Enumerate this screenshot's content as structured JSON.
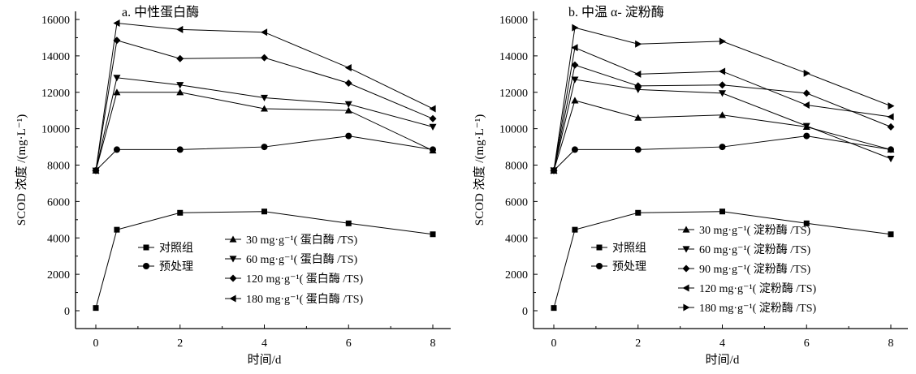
{
  "chart_data": [
    {
      "type": "line",
      "title": "a. 中性蛋白酶",
      "xlabel": "时间/d",
      "ylabel": "SCOD 浓度 /(mg·L⁻¹)",
      "xlim": [
        0,
        8
      ],
      "ylim": [
        0,
        16000
      ],
      "xticks": [
        0,
        2,
        4,
        6,
        8
      ],
      "yticks": [
        0,
        2000,
        4000,
        6000,
        8000,
        10000,
        12000,
        14000,
        16000
      ],
      "grid": false,
      "x": [
        0,
        0.5,
        2,
        4,
        6,
        8
      ],
      "series": [
        {
          "name": "对照组",
          "marker": "square",
          "values": [
            150,
            4450,
            5380,
            5450,
            4800,
            4200
          ]
        },
        {
          "name": "预处理",
          "marker": "circle",
          "values": [
            7700,
            8850,
            8850,
            9000,
            9600,
            8850
          ]
        },
        {
          "name": "30 mg·g⁻¹( 蛋白酶 /TS)",
          "marker": "triangle-up",
          "values": [
            7700,
            12000,
            12000,
            11100,
            11000,
            8800
          ]
        },
        {
          "name": "60 mg·g⁻¹( 蛋白酶 /TS)",
          "marker": "triangle-down",
          "values": [
            7700,
            12800,
            12400,
            11700,
            11350,
            10100
          ]
        },
        {
          "name": "120 mg·g⁻¹( 蛋白酶 /TS)",
          "marker": "diamond",
          "values": [
            7700,
            14850,
            13850,
            13900,
            12500,
            10550
          ]
        },
        {
          "name": "180 mg·g⁻¹( 蛋白酶 /TS)",
          "marker": "triangle-left",
          "values": [
            7700,
            15800,
            15450,
            15300,
            13350,
            11100
          ]
        }
      ]
    },
    {
      "type": "line",
      "title": "b. 中温 α- 淀粉酶",
      "xlabel": "时间/d",
      "ylabel": "SCOD 浓度 /(mg·L⁻¹)",
      "xlim": [
        0,
        8
      ],
      "ylim": [
        0,
        16000
      ],
      "xticks": [
        0,
        2,
        4,
        6,
        8
      ],
      "yticks": [
        0,
        2000,
        4000,
        6000,
        8000,
        10000,
        12000,
        14000,
        16000
      ],
      "grid": false,
      "x": [
        0,
        0.5,
        2,
        4,
        6,
        8
      ],
      "series": [
        {
          "name": "对照组",
          "marker": "square",
          "values": [
            150,
            4450,
            5380,
            5450,
            4800,
            4200
          ]
        },
        {
          "name": "预处理",
          "marker": "circle",
          "values": [
            7700,
            8850,
            8850,
            9000,
            9600,
            8850
          ]
        },
        {
          "name": "30 mg·g⁻¹( 淀粉酶 /TS)",
          "marker": "triangle-up",
          "values": [
            7700,
            11550,
            10600,
            10750,
            10100,
            8850
          ]
        },
        {
          "name": "60 mg·g⁻¹( 淀粉酶 /TS)",
          "marker": "triangle-down",
          "values": [
            7700,
            12700,
            12150,
            11950,
            10150,
            8350
          ]
        },
        {
          "name": "90 mg·g⁻¹( 淀粉酶 /TS)",
          "marker": "diamond",
          "values": [
            7700,
            13500,
            12350,
            12400,
            11950,
            10100
          ]
        },
        {
          "name": "120 mg·g⁻¹( 淀粉酶 /TS)",
          "marker": "triangle-left",
          "values": [
            7700,
            14450,
            13000,
            13150,
            11300,
            10650
          ]
        },
        {
          "name": "180 mg·g⁻¹( 淀粉酶 /TS)",
          "marker": "triangle-right",
          "values": [
            7700,
            15550,
            14650,
            14800,
            13050,
            11250
          ]
        }
      ]
    }
  ]
}
